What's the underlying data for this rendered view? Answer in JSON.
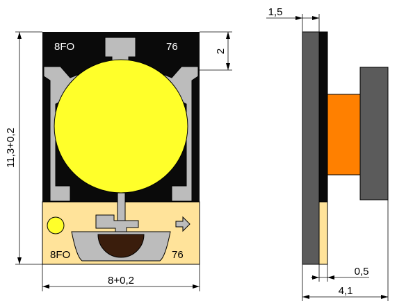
{
  "front_view": {
    "top_code_left": "8FO",
    "top_code_right": "76",
    "bottom_code_left": "8FO",
    "bottom_code_right": "76"
  },
  "dimensions": {
    "height_label": "11,3+0,2",
    "width_label": "8+0,2",
    "top_offset_label": "2",
    "side_thickness_label": "1,5",
    "base_layer_label": "0,5",
    "total_depth_label": "4,1"
  },
  "colors": {
    "board": "#0a0a0a",
    "metal": "#bcbcbc",
    "led_disc": "#ffff2a",
    "lower_panel": "#ffe39a",
    "lens_cavity": "#3a1d0c",
    "side_body": "#5b5b5b",
    "side_core": "#ff8000",
    "outline": "#000000"
  }
}
